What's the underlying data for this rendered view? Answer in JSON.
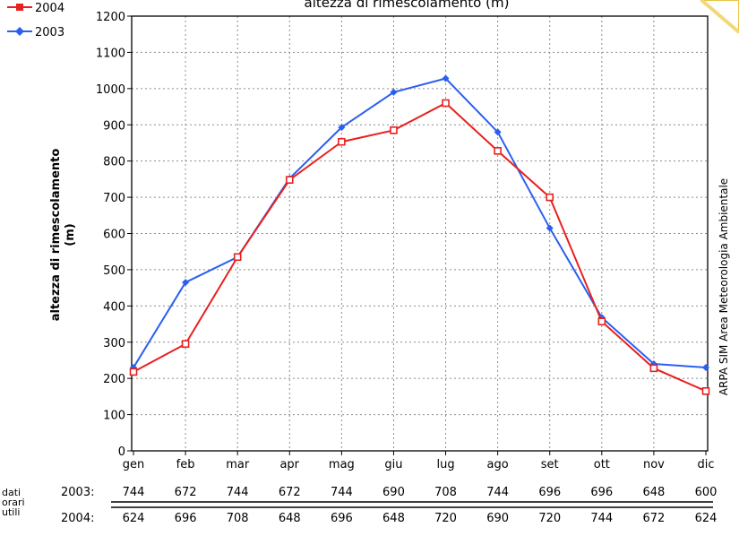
{
  "chart_data": {
    "type": "line",
    "title": "altezza di rimescolamento (m)",
    "ylabel": "altezza di rimescolamento (m)",
    "ylabel_lines": [
      "altezza di rimescolamento",
      "(m)"
    ],
    "xlabel": "",
    "ylim": [
      0,
      1200
    ],
    "yticks": [
      0,
      100,
      200,
      300,
      400,
      500,
      600,
      700,
      800,
      900,
      1000,
      1100,
      1200
    ],
    "grid": true,
    "legend_position": "top-left",
    "categories": [
      "gen",
      "feb",
      "mar",
      "apr",
      "mag",
      "giu",
      "lug",
      "ago",
      "set",
      "ott",
      "nov",
      "dic"
    ],
    "series": [
      {
        "name": "2004",
        "color": "#e8201f",
        "marker": "square",
        "values": [
          218,
          295,
          535,
          748,
          853,
          885,
          960,
          828,
          700,
          357,
          228,
          165
        ]
      },
      {
        "name": "2003",
        "color": "#2b5ff0",
        "marker": "diamond",
        "values": [
          230,
          465,
          535,
          752,
          893,
          990,
          1028,
          880,
          615,
          368,
          240,
          230
        ]
      }
    ],
    "side_note": "ARPA SIM Area Meteorologia Ambientale",
    "table": {
      "label": "dati orari utili",
      "label_lines": [
        "dati",
        "orari",
        "utili"
      ],
      "rows": [
        {
          "year": "2003:",
          "values": [
            "744",
            "672",
            "744",
            "672",
            "744",
            "690",
            "708",
            "744",
            "696",
            "696",
            "648",
            "600"
          ]
        },
        {
          "year": "2004:",
          "values": [
            "624",
            "696",
            "708",
            "648",
            "696",
            "648",
            "720",
            "690",
            "720",
            "744",
            "672",
            "624"
          ]
        }
      ]
    }
  }
}
